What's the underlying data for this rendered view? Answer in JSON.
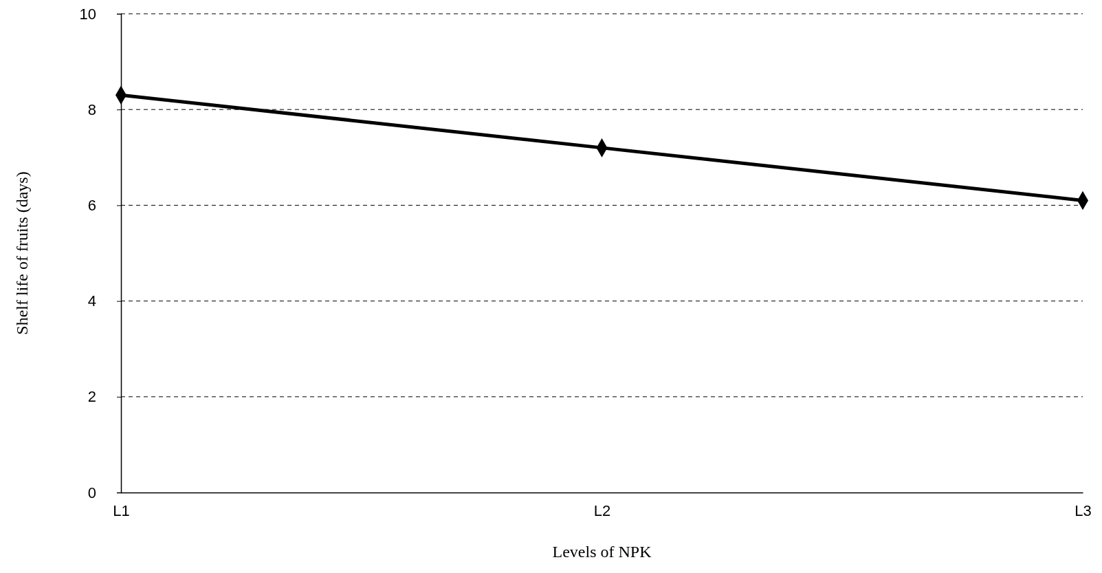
{
  "chart_data": {
    "type": "line",
    "xlabel": "Levels of NPK",
    "ylabel": "Shelf life of fruits (days)",
    "categories": [
      "L1",
      "L2",
      "L3"
    ],
    "series": [
      {
        "color": "#000000",
        "values": [
          8.3,
          7.2,
          6.1
        ]
      }
    ],
    "ylim": [
      0,
      10
    ],
    "yticks": [
      0,
      2,
      4,
      6,
      8,
      10
    ],
    "grid": "y",
    "marker": "diamond",
    "line_style": "solid"
  }
}
